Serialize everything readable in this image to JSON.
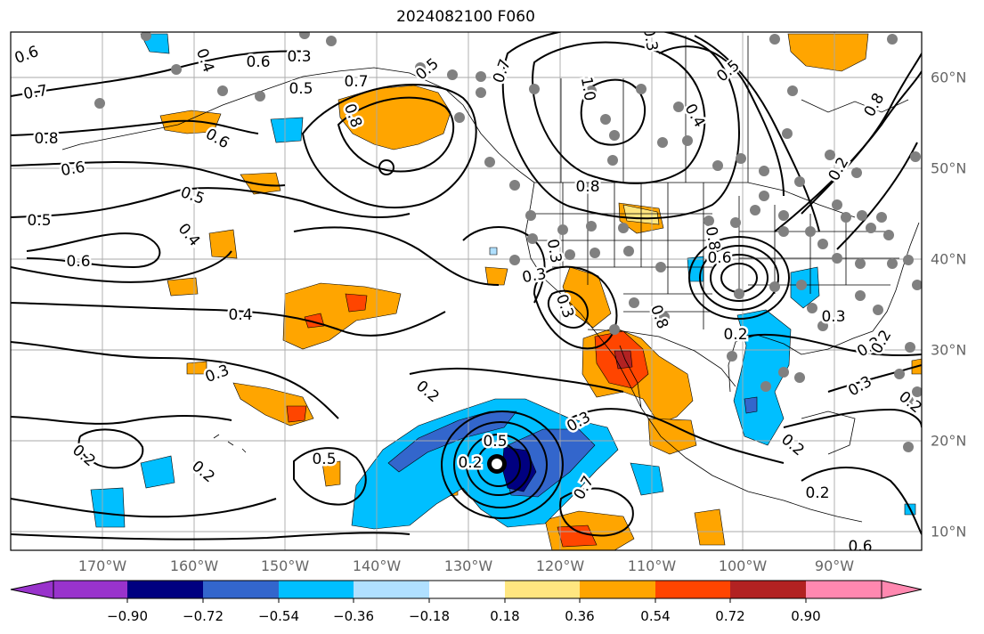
{
  "title": "2024082100 F060",
  "lon_ticks": [
    "170°W",
    "160°W",
    "150°W",
    "140°W",
    "130°W",
    "120°W",
    "110°W",
    "100°W",
    "90°W"
  ],
  "lat_ticks": [
    "60°N",
    "50°N",
    "40°N",
    "30°N",
    "20°N",
    "10°N"
  ],
  "contour_labels": [
    "0.6",
    "0.7",
    "0.8",
    "0.6",
    "0.5",
    "0.6",
    "0.4",
    "0.5",
    "0.4",
    "0.3",
    "0.2",
    "0.2",
    "0.5",
    "0.5",
    "0.4",
    "0.3",
    "0.6",
    "0.5",
    "0.7",
    "0.8",
    "0.6",
    "0.7",
    "1.0",
    "0.8",
    "0.4",
    "0.3",
    "0.5",
    "0.8",
    "0.6",
    "0.3",
    "0.3",
    "0.8",
    "0.2",
    "0.2",
    "0.3",
    "0.3",
    "0.2",
    "0.2",
    "0.3",
    "0.7",
    "0.8",
    "0.2",
    "0.2",
    "0.2",
    "0.2",
    "0.6",
    "0.5",
    "0.3",
    "0.2"
  ],
  "colorbar": {
    "ticks": [
      "−0.90",
      "−0.72",
      "−0.54",
      "−0.36",
      "−0.18",
      "0.18",
      "0.36",
      "0.54",
      "0.72",
      "0.90"
    ],
    "colors": [
      "#9933cc",
      "#000080",
      "#3366cc",
      "#00bfff",
      "#b0e0ff",
      "#ffffff",
      "#ffe680",
      "#ffa500",
      "#ff4500",
      "#b22222",
      "#ff88b0"
    ]
  },
  "colors": {
    "frame": "#000000",
    "grid": "#aaaaaa",
    "contour": "#000000",
    "station": "#808080",
    "axis_text": "#666666"
  }
}
